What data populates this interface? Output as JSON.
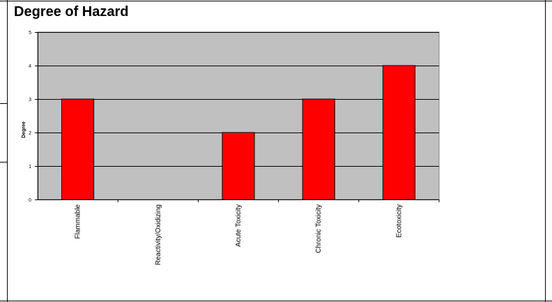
{
  "chart_data": {
    "type": "bar",
    "title": "Degree of Hazard",
    "xlabel": "",
    "ylabel": "Degree",
    "categories": [
      "Flammable",
      "Reactivity/Oxidizing",
      "Acute Toxicity",
      "Chronic Toxicity",
      "Ecotoxicity"
    ],
    "values": [
      3,
      0,
      2,
      3,
      4
    ],
    "ylim": [
      0,
      5
    ],
    "yticks": [
      "0",
      "1",
      "2",
      "3",
      "4",
      "5"
    ],
    "grid": true,
    "legend": "none",
    "colors": {
      "bar": "#ff0000",
      "bar_edge": "#000000",
      "plot_background": "#c0c0c0",
      "gridline": "#000000"
    }
  }
}
